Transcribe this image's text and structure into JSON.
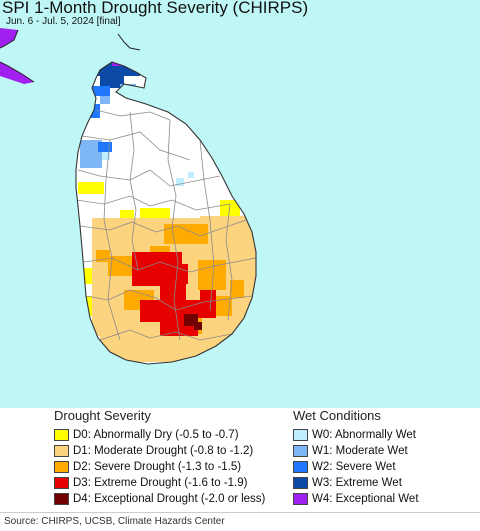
{
  "header": {
    "title": "SPI 1-Month Drought Severity (CHIRPS)",
    "subtitle": "Jun. 6 - Jul. 5, 2024 [final]"
  },
  "map": {
    "region": "Sri Lanka",
    "colors": {
      "ocean": "#bff7f7",
      "land_normal": "#ffffff",
      "boundary": "#888888",
      "coast": "#333333",
      "india_coast": "#a020f0"
    }
  },
  "legend": {
    "drought": {
      "heading": "Drought Severity",
      "items": [
        {
          "label": "D0: Abnormally Dry (-0.5 to -0.7)",
          "color": "#ffff00"
        },
        {
          "label": "D1: Moderate Drought (-0.8 to -1.2)",
          "color": "#fcd37f"
        },
        {
          "label": "D2: Severe Drought (-1.3 to -1.5)",
          "color": "#ffaa00"
        },
        {
          "label": "D3: Extreme Drought (-1.6 to -1.9)",
          "color": "#e60000"
        },
        {
          "label": "D4: Exceptional Drought (-2.0 or less)",
          "color": "#730000"
        }
      ]
    },
    "wet": {
      "heading": "Wet Conditions",
      "items": [
        {
          "label": "W0: Abnormally Wet",
          "color": "#bfefff"
        },
        {
          "label": "W1: Moderate Wet",
          "color": "#7fb6f5"
        },
        {
          "label": "W2: Severe Wet",
          "color": "#1f78ff"
        },
        {
          "label": "W3: Extreme Wet",
          "color": "#0c4aa8"
        },
        {
          "label": "W4: Exceptional Wet",
          "color": "#a020f0"
        }
      ]
    }
  },
  "footer": {
    "source": "Source: CHIRPS, UCSB, Climate Hazards Center"
  }
}
